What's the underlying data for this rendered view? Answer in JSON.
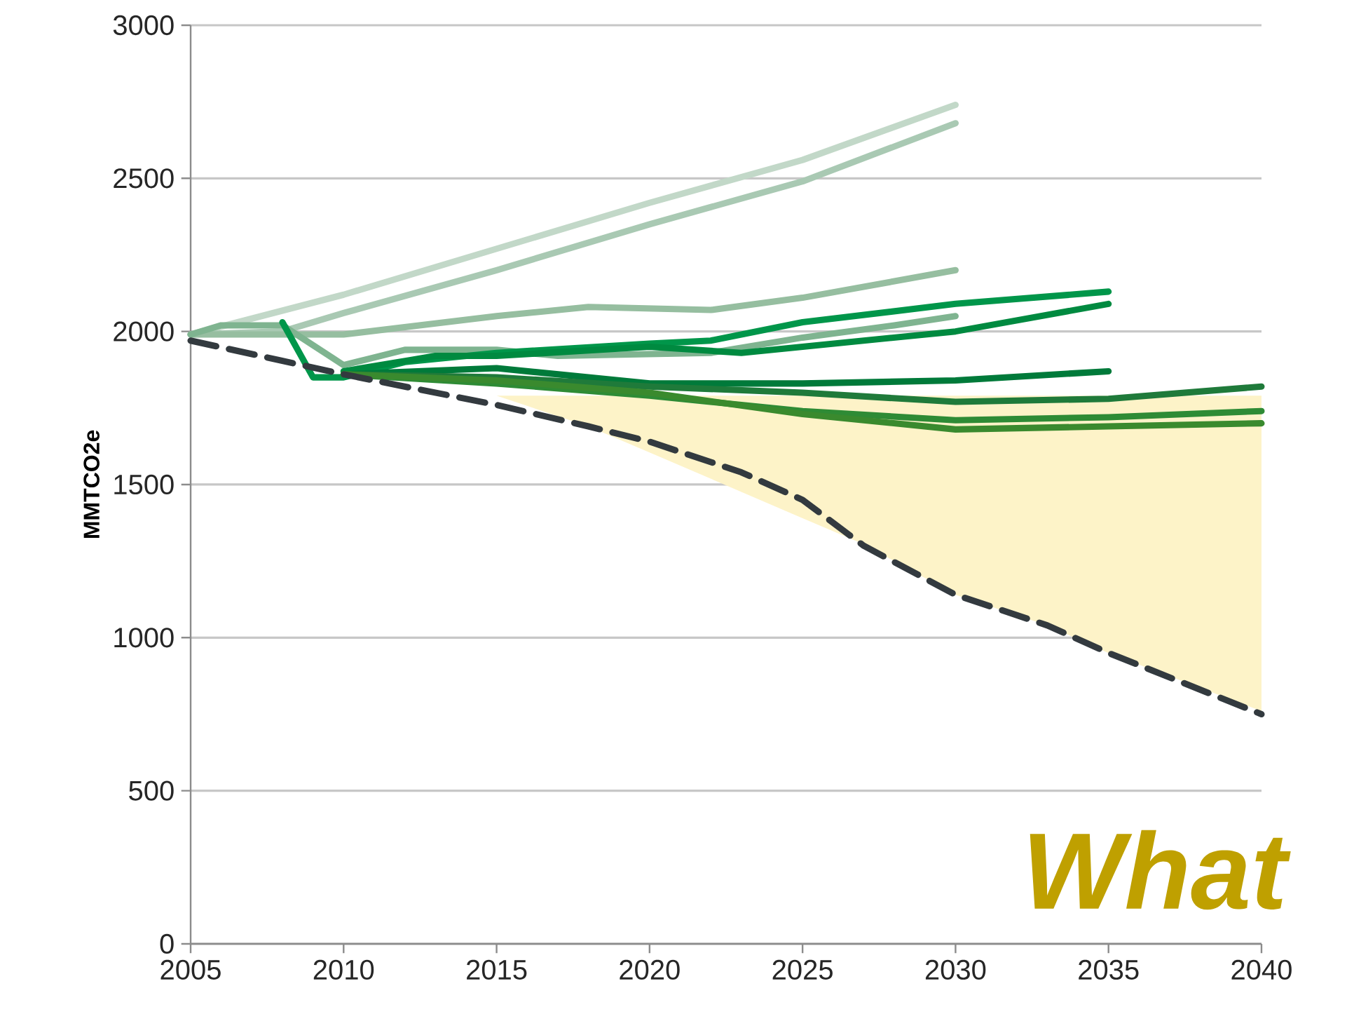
{
  "chart_data": {
    "type": "line",
    "ylabel": "MMTCO2e",
    "xlim": [
      2005,
      2040
    ],
    "xticks": [
      2005,
      2010,
      2015,
      2020,
      2025,
      2030,
      2035,
      2040
    ],
    "ylim": [
      0,
      3000
    ],
    "yticks": [
      0,
      500,
      1000,
      1500,
      2000,
      2500,
      3000
    ],
    "grid": "y",
    "marker": "none",
    "line_style": "solid",
    "annotations": [
      "What"
    ],
    "series": [
      {
        "color": "#c2d8c8",
        "x": [
          2005,
          2010,
          2015,
          2020,
          2025,
          2030
        ],
        "values": [
          1990,
          2120,
          2270,
          2420,
          2560,
          2740
        ]
      },
      {
        "color": "#a9c9b3",
        "x": [
          2005,
          2008,
          2010,
          2015,
          2020,
          2025,
          2030
        ],
        "values": [
          1990,
          2000,
          2060,
          2200,
          2350,
          2490,
          2680
        ]
      },
      {
        "color": "#96bea0",
        "x": [
          2005,
          2010,
          2015,
          2018,
          2022,
          2025,
          2030
        ],
        "values": [
          1990,
          1990,
          2050,
          2080,
          2070,
          2110,
          2200
        ]
      },
      {
        "color": "#7fb490",
        "x": [
          2005,
          2006,
          2008,
          2010,
          2012,
          2015,
          2017,
          2022,
          2025,
          2028,
          2030
        ],
        "values": [
          1990,
          2020,
          2020,
          1890,
          1940,
          1940,
          1920,
          1930,
          1980,
          2020,
          2050
        ]
      },
      {
        "color": "#00964a",
        "x": [
          2008,
          2009,
          2010,
          2012,
          2015,
          2020,
          2022,
          2025,
          2030,
          2035
        ],
        "values": [
          2030,
          1850,
          1850,
          1900,
          1930,
          1960,
          1970,
          2030,
          2090,
          2130
        ]
      },
      {
        "color": "#008a40",
        "x": [
          2010,
          2013,
          2015,
          2020,
          2023,
          2025,
          2030,
          2035
        ],
        "values": [
          1870,
          1920,
          1920,
          1950,
          1930,
          1950,
          2000,
          2090
        ]
      },
      {
        "color": "#007a3a",
        "x": [
          2010,
          2015,
          2020,
          2025,
          2030,
          2035
        ],
        "values": [
          1860,
          1880,
          1830,
          1830,
          1840,
          1870
        ]
      },
      {
        "color": "#1f7a3a",
        "x": [
          2010,
          2015,
          2020,
          2025,
          2030,
          2035,
          2040
        ],
        "values": [
          1860,
          1850,
          1820,
          1800,
          1770,
          1780,
          1820
        ]
      },
      {
        "color": "#2e8b35",
        "x": [
          2010,
          2015,
          2020,
          2025,
          2030,
          2035,
          2040
        ],
        "values": [
          1860,
          1830,
          1790,
          1740,
          1710,
          1720,
          1740
        ]
      },
      {
        "color": "#3a8a2e",
        "x": [
          2010,
          2015,
          2020,
          2025,
          2030,
          2035,
          2040
        ],
        "values": [
          1860,
          1840,
          1800,
          1730,
          1680,
          1690,
          1700
        ]
      },
      {
        "color": "#333a3f",
        "line_style": "dashed",
        "x": [
          2005,
          2010,
          2015,
          2018,
          2020,
          2023,
          2025,
          2027,
          2030,
          2033,
          2035,
          2040
        ],
        "values": [
          1970,
          1860,
          1760,
          1690,
          1640,
          1540,
          1450,
          1300,
          1140,
          1040,
          950,
          750
        ],
        "lower": [
          null,
          null,
          1790,
          1690,
          1605,
          1476,
          1390,
          1305,
          1140,
          1040,
          950,
          760
        ],
        "upper": [
          null,
          null,
          1790,
          1790,
          1790,
          1790,
          1790,
          1790,
          1790,
          1790,
          1790,
          1790
        ]
      }
    ]
  }
}
